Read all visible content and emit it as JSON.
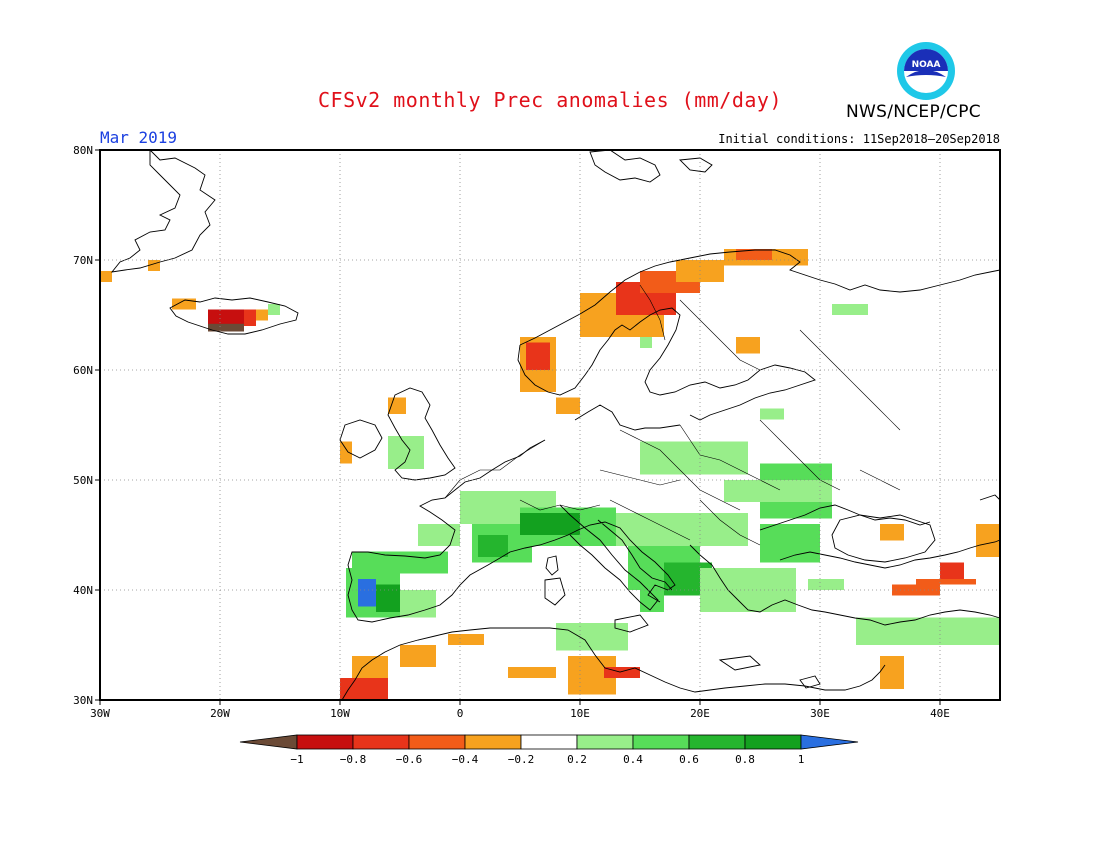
{
  "header": {
    "title": "CFSv2 monthly Prec anomalies (mm/day)",
    "agency": "NWS/NCEP/CPC",
    "logo_text": "NOAA",
    "month": "Mar 2019",
    "initial_conditions": "Initial conditions: 11Sep2018–20Sep2018"
  },
  "map": {
    "lon_range": [
      -30,
      45
    ],
    "lat_range": [
      30,
      80
    ],
    "lon_ticks": [
      {
        "value": -30,
        "label": "30W"
      },
      {
        "value": -20,
        "label": "20W"
      },
      {
        "value": -10,
        "label": "10W"
      },
      {
        "value": 0,
        "label": "0"
      },
      {
        "value": 10,
        "label": "10E"
      },
      {
        "value": 20,
        "label": "20E"
      },
      {
        "value": 30,
        "label": "30E"
      },
      {
        "value": 40,
        "label": "40E"
      }
    ],
    "lat_ticks": [
      {
        "value": 30,
        "label": "30N"
      },
      {
        "value": 40,
        "label": "40N"
      },
      {
        "value": 50,
        "label": "50N"
      },
      {
        "value": 60,
        "label": "60N"
      },
      {
        "value": 70,
        "label": "70N"
      },
      {
        "value": 80,
        "label": "80N"
      }
    ],
    "grid": true
  },
  "legend": {
    "bins": [
      {
        "color": "#6b4a36"
      },
      {
        "color": "#c70f0f"
      },
      {
        "color": "#e8341a"
      },
      {
        "color": "#f25c19"
      },
      {
        "color": "#f7a21f"
      },
      {
        "color": "#ffffff"
      },
      {
        "color": "#98ee8a"
      },
      {
        "color": "#57dd59"
      },
      {
        "color": "#25b52e"
      },
      {
        "color": "#13a11f"
      },
      {
        "color": "#2a6fe0"
      }
    ],
    "labels": [
      "−1",
      "−0.8",
      "−0.6",
      "−0.4",
      "−0.2",
      "0.2",
      "0.4",
      "0.6",
      "0.8",
      "1"
    ]
  },
  "anomaly_cells": [
    {
      "lon": [
        0,
        8
      ],
      "lat": [
        46,
        49
      ],
      "color": "#98ee8a"
    },
    {
      "lon": [
        1,
        6
      ],
      "lat": [
        42.5,
        46
      ],
      "color": "#57dd59"
    },
    {
      "lon": [
        1.5,
        4
      ],
      "lat": [
        43,
        45
      ],
      "color": "#25b52e"
    },
    {
      "lon": [
        -3.5,
        0
      ],
      "lat": [
        44,
        46
      ],
      "color": "#98ee8a"
    },
    {
      "lon": [
        -9,
        -1
      ],
      "lat": [
        41.5,
        43.5
      ],
      "color": "#57dd59"
    },
    {
      "lon": [
        -9.5,
        -5
      ],
      "lat": [
        37.5,
        42
      ],
      "color": "#57dd59"
    },
    {
      "lon": [
        -8.5,
        -7
      ],
      "lat": [
        38.5,
        41
      ],
      "color": "#2a6fe0"
    },
    {
      "lon": [
        -7,
        -5
      ],
      "lat": [
        38,
        40.5
      ],
      "color": "#13a11f"
    },
    {
      "lon": [
        -5,
        -2
      ],
      "lat": [
        37.5,
        40
      ],
      "color": "#98ee8a"
    },
    {
      "lon": [
        5,
        13
      ],
      "lat": [
        44,
        47.5
      ],
      "color": "#57dd59"
    },
    {
      "lon": [
        5,
        10
      ],
      "lat": [
        45,
        47
      ],
      "color": "#13a11f"
    },
    {
      "lon": [
        13,
        24
      ],
      "lat": [
        44,
        47
      ],
      "color": "#98ee8a"
    },
    {
      "lon": [
        14,
        20
      ],
      "lat": [
        40,
        44
      ],
      "color": "#57dd59"
    },
    {
      "lon": [
        17,
        21
      ],
      "lat": [
        39.5,
        42.5
      ],
      "color": "#25b52e"
    },
    {
      "lon": [
        20,
        28
      ],
      "lat": [
        38,
        42
      ],
      "color": "#98ee8a"
    },
    {
      "lon": [
        25,
        30
      ],
      "lat": [
        42.5,
        46
      ],
      "color": "#57dd59"
    },
    {
      "lon": [
        15,
        24
      ],
      "lat": [
        50.5,
        53.5
      ],
      "color": "#98ee8a"
    },
    {
      "lon": [
        25,
        31
      ],
      "lat": [
        46.5,
        51.5
      ],
      "color": "#57dd59"
    },
    {
      "lon": [
        22,
        31
      ],
      "lat": [
        48,
        50
      ],
      "color": "#98ee8a"
    },
    {
      "lon": [
        -6,
        -3
      ],
      "lat": [
        51,
        54
      ],
      "color": "#98ee8a"
    },
    {
      "lon": [
        8,
        14
      ],
      "lat": [
        34.5,
        37
      ],
      "color": "#98ee8a"
    },
    {
      "lon": [
        15,
        17
      ],
      "lat": [
        38,
        40
      ],
      "color": "#57dd59"
    },
    {
      "lon": [
        29,
        32
      ],
      "lat": [
        40,
        41
      ],
      "color": "#98ee8a"
    },
    {
      "lon": [
        33,
        45
      ],
      "lat": [
        35,
        37.5
      ],
      "color": "#98ee8a"
    },
    {
      "lon": [
        38,
        43
      ],
      "lat": [
        40.5,
        41
      ],
      "color": "#f25c19"
    },
    {
      "lon": [
        36,
        40
      ],
      "lat": [
        39.5,
        40.5
      ],
      "color": "#f25c19"
    },
    {
      "lon": [
        40,
        42
      ],
      "lat": [
        41,
        42.5
      ],
      "color": "#e8341a"
    },
    {
      "lon": [
        43,
        45
      ],
      "lat": [
        43,
        46
      ],
      "color": "#f7a21f"
    },
    {
      "lon": [
        35,
        37
      ],
      "lat": [
        44.5,
        46
      ],
      "color": "#f7a21f"
    },
    {
      "lon": [
        -10,
        -6
      ],
      "lat": [
        30,
        32
      ],
      "color": "#e8341a"
    },
    {
      "lon": [
        -9,
        -6
      ],
      "lat": [
        32,
        34
      ],
      "color": "#f7a21f"
    },
    {
      "lon": [
        -5,
        -2
      ],
      "lat": [
        33,
        35
      ],
      "color": "#f7a21f"
    },
    {
      "lon": [
        -1,
        2
      ],
      "lat": [
        35,
        36
      ],
      "color": "#f7a21f"
    },
    {
      "lon": [
        4,
        8
      ],
      "lat": [
        32,
        33
      ],
      "color": "#f7a21f"
    },
    {
      "lon": [
        9,
        13
      ],
      "lat": [
        30.5,
        34
      ],
      "color": "#f7a21f"
    },
    {
      "lon": [
        12,
        15
      ],
      "lat": [
        32,
        33
      ],
      "color": "#e8341a"
    },
    {
      "lon": [
        35,
        37
      ],
      "lat": [
        31,
        34
      ],
      "color": "#f7a21f"
    },
    {
      "lon": [
        5,
        8
      ],
      "lat": [
        58,
        63
      ],
      "color": "#f7a21f"
    },
    {
      "lon": [
        5.5,
        7.5
      ],
      "lat": [
        60,
        62.5
      ],
      "color": "#e8341a"
    },
    {
      "lon": [
        10,
        17
      ],
      "lat": [
        63,
        67
      ],
      "color": "#f7a21f"
    },
    {
      "lon": [
        13,
        18
      ],
      "lat": [
        65,
        68
      ],
      "color": "#e8341a"
    },
    {
      "lon": [
        15,
        20
      ],
      "lat": [
        67,
        69
      ],
      "color": "#f25c19"
    },
    {
      "lon": [
        18,
        22
      ],
      "lat": [
        68,
        70
      ],
      "color": "#f7a21f"
    },
    {
      "lon": [
        22,
        29
      ],
      "lat": [
        69.5,
        71
      ],
      "color": "#f7a21f"
    },
    {
      "lon": [
        23,
        26
      ],
      "lat": [
        70,
        71
      ],
      "color": "#f25c19"
    },
    {
      "lon": [
        8,
        10
      ],
      "lat": [
        56,
        57.5
      ],
      "color": "#f7a21f"
    },
    {
      "lon": [
        -10,
        -9
      ],
      "lat": [
        51.5,
        53.5
      ],
      "color": "#f7a21f"
    },
    {
      "lon": [
        -6,
        -4.5
      ],
      "lat": [
        56,
        57.5
      ],
      "color": "#f7a21f"
    },
    {
      "lon": [
        -21,
        -18
      ],
      "lat": [
        63.5,
        65.5
      ],
      "color": "#c70f0f"
    },
    {
      "lon": [
        -21,
        -18
      ],
      "lat": [
        63.5,
        64.2
      ],
      "color": "#6b4a36"
    },
    {
      "lon": [
        -18,
        -17
      ],
      "lat": [
        64,
        65.5
      ],
      "color": "#e8341a"
    },
    {
      "lon": [
        -17,
        -16
      ],
      "lat": [
        64.5,
        65.5
      ],
      "color": "#f7a21f"
    },
    {
      "lon": [
        -24,
        -22
      ],
      "lat": [
        65.5,
        66.5
      ],
      "color": "#f7a21f"
    },
    {
      "lon": [
        -30,
        -29
      ],
      "lat": [
        68,
        69
      ],
      "color": "#f7a21f"
    },
    {
      "lon": [
        -26,
        -25
      ],
      "lat": [
        69,
        70
      ],
      "color": "#f7a21f"
    },
    {
      "lon": [
        -16,
        -15
      ],
      "lat": [
        65,
        66
      ],
      "color": "#98ee8a"
    },
    {
      "lon": [
        23,
        25
      ],
      "lat": [
        61.5,
        63
      ],
      "color": "#f7a21f"
    },
    {
      "lon": [
        31,
        34
      ],
      "lat": [
        65,
        66
      ],
      "color": "#98ee8a"
    },
    {
      "lon": [
        15,
        16
      ],
      "lat": [
        62,
        63
      ],
      "color": "#98ee8a"
    },
    {
      "lon": [
        25,
        27
      ],
      "lat": [
        55.5,
        56.5
      ],
      "color": "#98ee8a"
    }
  ]
}
